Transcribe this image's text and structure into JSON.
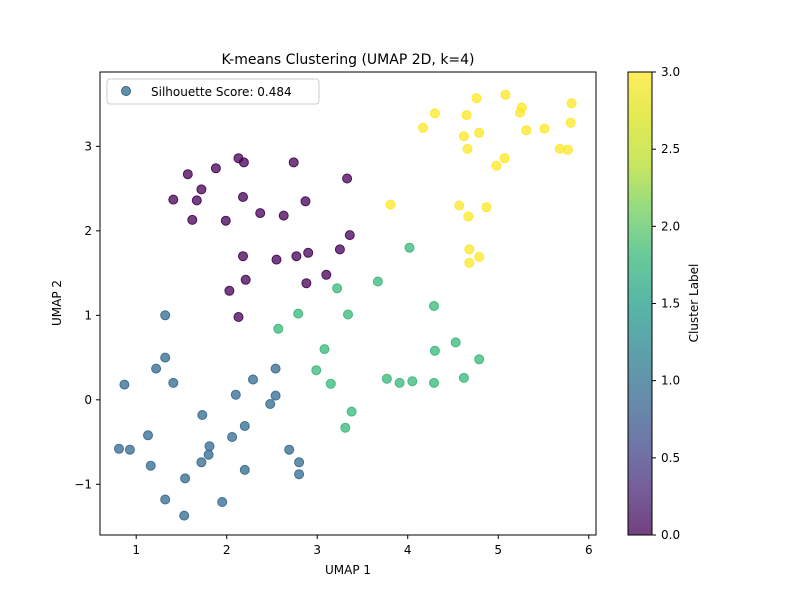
{
  "chart_data": {
    "type": "scatter",
    "title": "K-means Clustering (UMAP 2D, k=4)",
    "xlabel": "UMAP 1",
    "ylabel": "UMAP 2",
    "xlim": [
      0.6,
      6.08
    ],
    "ylim": [
      -1.6,
      3.88
    ],
    "xticks": [
      "1",
      "2",
      "3",
      "4",
      "5",
      "6"
    ],
    "yticks": [
      "−1",
      "0",
      "1",
      "2",
      "3"
    ],
    "legend": {
      "label": "Silhouette Score: 0.484",
      "position": "top-left"
    },
    "colorbar": {
      "label": "Cluster Label",
      "range": [
        0.0,
        3.0
      ],
      "ticks": [
        "0.0",
        "0.5",
        "1.0",
        "1.5",
        "2.0",
        "2.5",
        "3.0"
      ],
      "colormap": "viridis"
    },
    "grid": false,
    "cluster_colors": [
      "#440154",
      "#31688e",
      "#35b779",
      "#fde725"
    ],
    "series": [
      {
        "cluster": 0,
        "points": [
          [
            1.57,
            2.67
          ],
          [
            1.88,
            2.74
          ],
          [
            2.13,
            2.86
          ],
          [
            2.19,
            2.81
          ],
          [
            2.74,
            2.81
          ],
          [
            3.33,
            2.62
          ],
          [
            1.72,
            2.49
          ],
          [
            1.41,
            2.37
          ],
          [
            1.67,
            2.36
          ],
          [
            2.18,
            2.4
          ],
          [
            2.87,
            2.35
          ],
          [
            1.62,
            2.13
          ],
          [
            1.99,
            2.12
          ],
          [
            2.37,
            2.21
          ],
          [
            2.63,
            2.18
          ],
          [
            3.36,
            1.95
          ],
          [
            3.25,
            1.78
          ],
          [
            2.9,
            1.74
          ],
          [
            2.77,
            1.7
          ],
          [
            2.18,
            1.7
          ],
          [
            2.55,
            1.66
          ],
          [
            3.1,
            1.48
          ],
          [
            2.21,
            1.42
          ],
          [
            2.88,
            1.38
          ],
          [
            2.03,
            1.29
          ],
          [
            2.13,
            0.98
          ]
        ]
      },
      {
        "cluster": 1,
        "points": [
          [
            1.32,
            1.0
          ],
          [
            1.32,
            0.5
          ],
          [
            1.22,
            0.37
          ],
          [
            1.41,
            0.2
          ],
          [
            0.87,
            0.18
          ],
          [
            2.54,
            0.37
          ],
          [
            2.29,
            0.24
          ],
          [
            2.1,
            0.06
          ],
          [
            2.54,
            0.05
          ],
          [
            2.48,
            -0.05
          ],
          [
            1.73,
            -0.18
          ],
          [
            2.2,
            -0.31
          ],
          [
            1.13,
            -0.42
          ],
          [
            2.06,
            -0.44
          ],
          [
            0.81,
            -0.58
          ],
          [
            0.93,
            -0.59
          ],
          [
            1.81,
            -0.55
          ],
          [
            2.69,
            -0.59
          ],
          [
            1.8,
            -0.65
          ],
          [
            1.16,
            -0.78
          ],
          [
            1.72,
            -0.74
          ],
          [
            2.2,
            -0.83
          ],
          [
            2.8,
            -0.74
          ],
          [
            2.8,
            -0.88
          ],
          [
            1.54,
            -0.93
          ],
          [
            1.32,
            -1.18
          ],
          [
            1.95,
            -1.21
          ],
          [
            1.53,
            -1.37
          ]
        ]
      },
      {
        "cluster": 2,
        "points": [
          [
            4.02,
            1.8
          ],
          [
            3.67,
            1.4
          ],
          [
            3.22,
            1.32
          ],
          [
            4.29,
            1.11
          ],
          [
            2.79,
            1.02
          ],
          [
            3.34,
            1.01
          ],
          [
            2.57,
            0.84
          ],
          [
            4.53,
            0.68
          ],
          [
            3.08,
            0.6
          ],
          [
            4.3,
            0.58
          ],
          [
            4.79,
            0.48
          ],
          [
            2.99,
            0.35
          ],
          [
            3.77,
            0.25
          ],
          [
            4.62,
            0.26
          ],
          [
            3.91,
            0.2
          ],
          [
            4.05,
            0.22
          ],
          [
            3.15,
            0.19
          ],
          [
            4.29,
            0.2
          ],
          [
            3.38,
            -0.14
          ],
          [
            3.31,
            -0.33
          ]
        ]
      },
      {
        "cluster": 3,
        "points": [
          [
            5.08,
            3.61
          ],
          [
            4.76,
            3.57
          ],
          [
            5.81,
            3.51
          ],
          [
            5.26,
            3.46
          ],
          [
            4.3,
            3.39
          ],
          [
            4.65,
            3.37
          ],
          [
            5.24,
            3.4
          ],
          [
            5.8,
            3.28
          ],
          [
            4.17,
            3.22
          ],
          [
            5.31,
            3.19
          ],
          [
            5.51,
            3.21
          ],
          [
            4.79,
            3.16
          ],
          [
            4.62,
            3.12
          ],
          [
            4.66,
            2.97
          ],
          [
            5.68,
            2.97
          ],
          [
            5.77,
            2.96
          ],
          [
            5.07,
            2.86
          ],
          [
            4.98,
            2.77
          ],
          [
            3.81,
            2.31
          ],
          [
            4.57,
            2.3
          ],
          [
            4.87,
            2.28
          ],
          [
            4.67,
            2.17
          ],
          [
            4.68,
            1.78
          ],
          [
            4.79,
            1.69
          ],
          [
            4.68,
            1.62
          ]
        ]
      }
    ]
  }
}
